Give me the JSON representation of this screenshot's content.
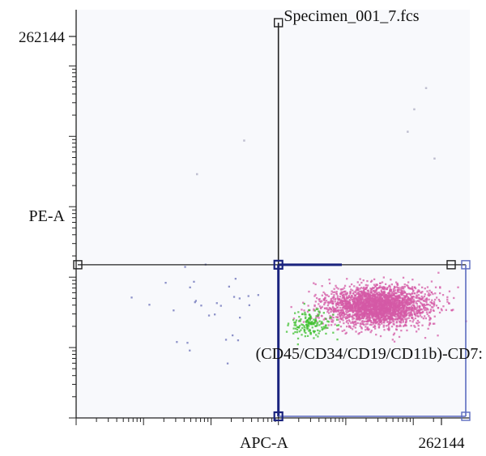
{
  "chart_data": {
    "type": "scatter",
    "title": "Specimen_001_7.fcs",
    "xlabel": "APC-A",
    "ylabel": "PE-A",
    "x_scale": "log",
    "y_scale": "log",
    "x_tick_labels": [
      "262144"
    ],
    "y_tick_labels": [
      "262144"
    ],
    "xlim": [
      1,
      262144
    ],
    "ylim": [
      1,
      262144
    ],
    "gate_label": "(CD45/CD34/CD19/CD11b)-CD7:",
    "series": [
      {
        "color": "#d45aa6",
        "clusters": [
          {
            "x": 30000,
            "y": 40,
            "spread_x": 0.75,
            "spread_y": 0.28,
            "count": 2600
          }
        ]
      },
      {
        "color": "#3fbf2f",
        "clusters": [
          {
            "x": 3000,
            "y": 22,
            "spread_x": 0.3,
            "spread_y": 0.2,
            "count": 160
          }
        ]
      },
      {
        "color": "#6a6fb8",
        "clusters": [
          {
            "x": 100,
            "y": 40,
            "spread_x": 1.0,
            "spread_y": 0.6,
            "count": 30
          }
        ]
      },
      {
        "color": "#bfbfd0",
        "points": [
          [
            300,
            9000
          ],
          [
            60,
            3000
          ],
          [
            100000,
            25000
          ],
          [
            80000,
            12000
          ],
          [
            150000,
            50000
          ],
          [
            200000,
            5000
          ]
        ]
      }
    ],
    "quadrant_gate": {
      "x": 1000,
      "y": 150
    },
    "colors": {
      "frame": "#222222",
      "gate": "#1a237e",
      "handle_light": "#5c6bc0",
      "plot_bg": "#f8f9fc"
    }
  }
}
